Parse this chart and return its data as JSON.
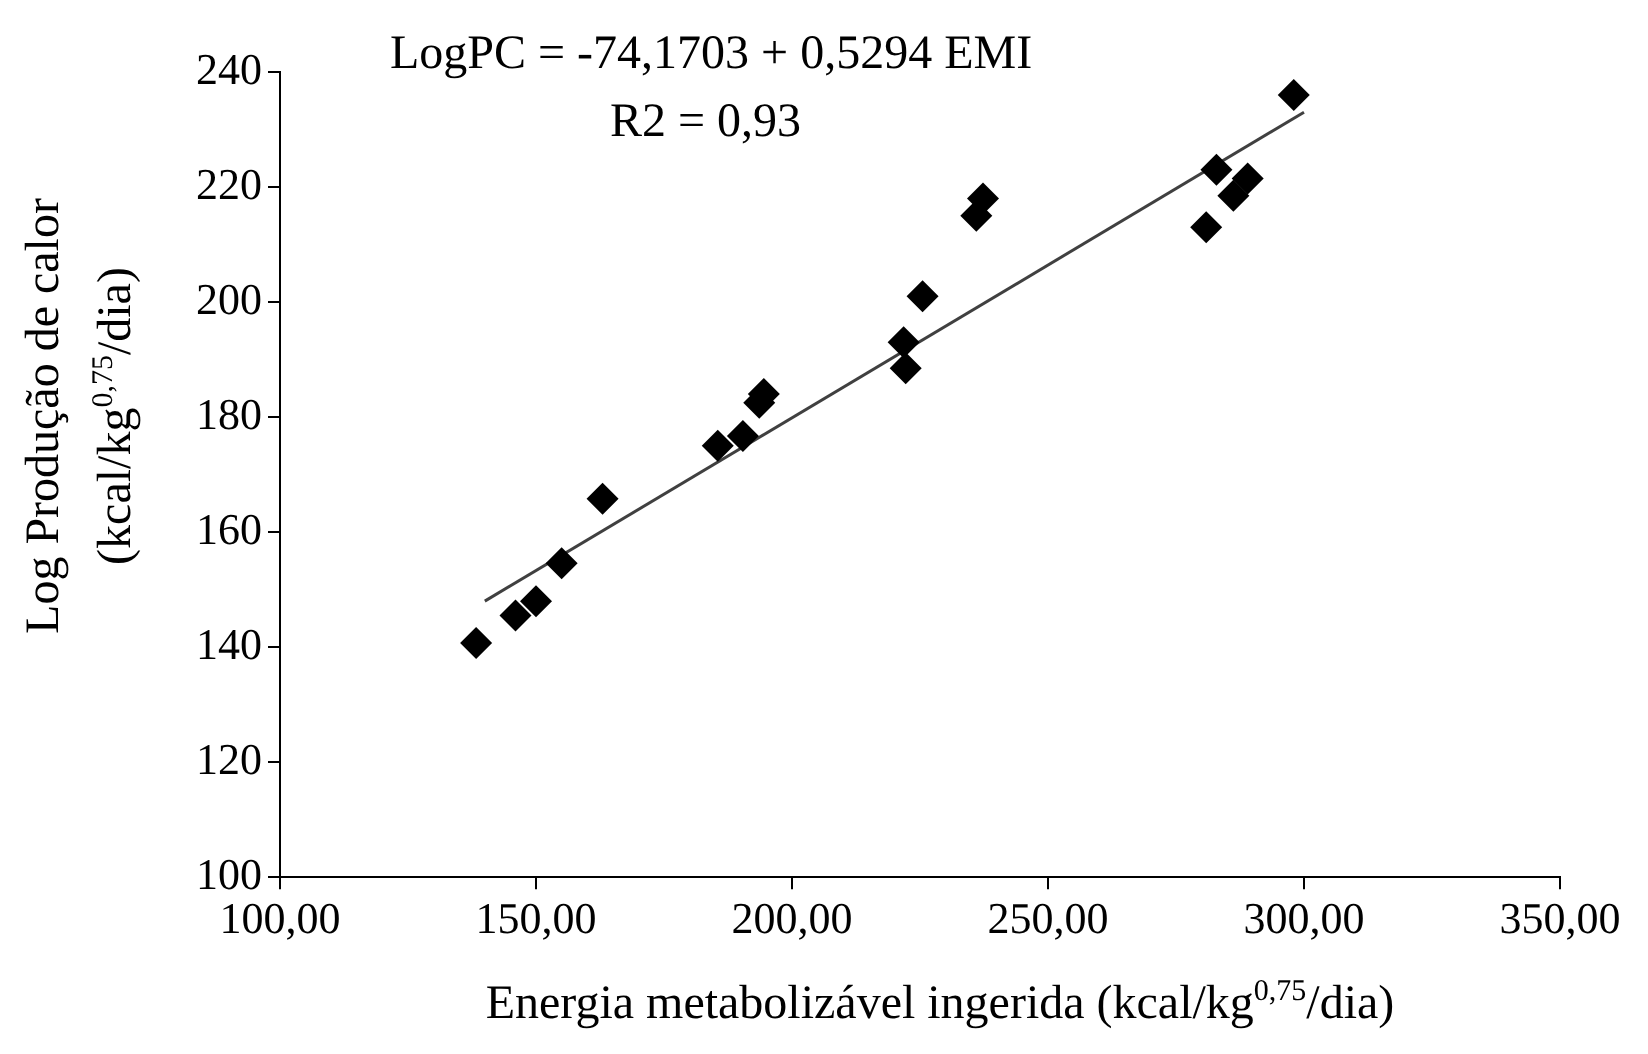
{
  "chart_data": {
    "type": "scatter",
    "xlabel": "Energia metabolizável ingerida (kcal/kg$^{0,75}$/dia)",
    "ylabel": "Log Produção de calor (kcal/kg$^{0,75}$/dia)",
    "annotations": [
      "LogPC = -74,1703 + 0,5294 EMI",
      "R2 = 0,93"
    ],
    "marker": "diamond",
    "series": [
      {
        "color": "#000000",
        "x": [
          138.3,
          146,
          150,
          155,
          163,
          185.5,
          190.4,
          193.6,
          194.5,
          221.8,
          222.2,
          225.5,
          236,
          237.3,
          280.9,
          282.9,
          286.2,
          289,
          298
        ],
        "values": [
          140.7,
          145.5,
          148,
          154.6,
          165.8,
          175,
          176.7,
          182.5,
          184,
          193,
          188.5,
          201,
          215,
          218,
          213,
          223,
          218.5,
          221.5,
          236
        ]
      },
      {
        "type": "line",
        "color": "#404040",
        "marker": "none",
        "x": [
          140,
          300
        ],
        "values": [
          148,
          233
        ]
      }
    ],
    "xlim": [
      100,
      350
    ],
    "xticks": [
      {
        "value": 100,
        "label": "100,00"
      },
      {
        "value": 150,
        "label": "150,00"
      },
      {
        "value": 200,
        "label": "200,00"
      },
      {
        "value": 250,
        "label": "250,00"
      },
      {
        "value": 300,
        "label": "300,00"
      },
      {
        "value": 350,
        "label": "350,00"
      }
    ],
    "ylim": [
      100,
      240
    ],
    "yticks": [
      100,
      120,
      140,
      160,
      180,
      200,
      220,
      240
    ],
    "grid": false,
    "legend": false
  }
}
